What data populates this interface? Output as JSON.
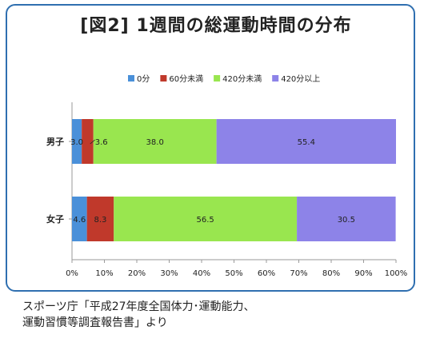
{
  "chart_data": {
    "type": "bar",
    "orientation": "horizontal",
    "stacked": true,
    "title": "[図2] 1週間の総運動時間の分布",
    "categories": [
      "男子",
      "女子"
    ],
    "series": [
      {
        "name": "0分",
        "values": [
          3.0,
          4.6
        ],
        "labels": [
          "3.0",
          "4.6"
        ],
        "color": "#4a90d9"
      },
      {
        "name": "60分未満",
        "values": [
          3.6,
          8.3
        ],
        "labels": [
          "3.6",
          "8.3"
        ],
        "color": "#c0392b"
      },
      {
        "name": "420分未満",
        "values": [
          38.0,
          56.5
        ],
        "labels": [
          "38.0",
          "56.5"
        ],
        "color": "#99e64f"
      },
      {
        "name": "420分以上",
        "values": [
          55.4,
          30.5
        ],
        "labels": [
          "55.4",
          "30.5"
        ],
        "color": "#8d83e8"
      }
    ],
    "xticks": [
      "0%",
      "10%",
      "20%",
      "30%",
      "40%",
      "50%",
      "60%",
      "70%",
      "80%",
      "90%",
      "100%"
    ],
    "xlim": [
      0,
      100
    ],
    "grid": false,
    "legend": "top"
  },
  "source": {
    "line1": "スポーツ庁「平成27年度全国体力･運動能力、",
    "line2": "運動習慣等調査報告書」より"
  }
}
